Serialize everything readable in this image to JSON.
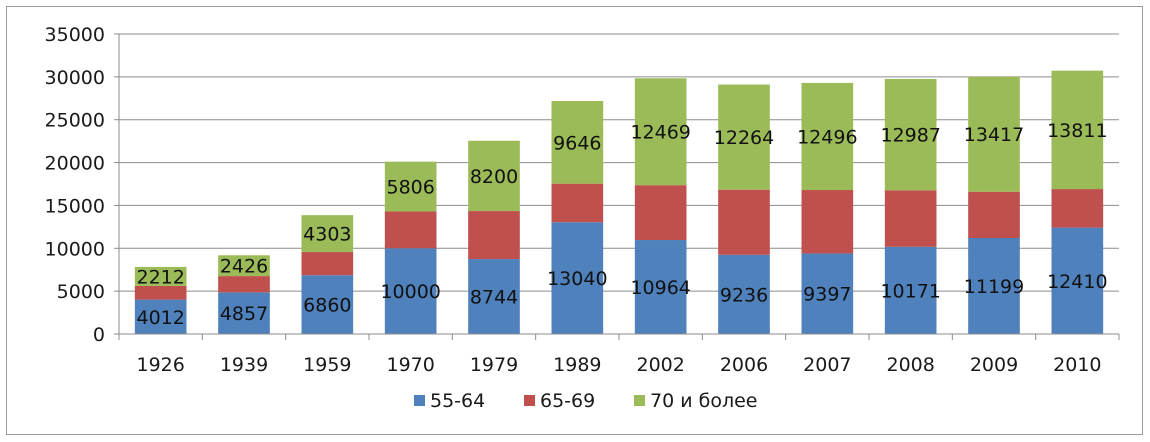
{
  "chart_data": {
    "type": "bar",
    "stacked": true,
    "categories": [
      "1926",
      "1939",
      "1959",
      "1970",
      "1979",
      "1989",
      "2002",
      "2006",
      "2007",
      "2008",
      "2009",
      "2010"
    ],
    "series": [
      {
        "name": "55-64",
        "color": "#4f81bd",
        "values": [
          4012,
          4857,
          6860,
          10000,
          8744,
          13040,
          10964,
          9236,
          9397,
          10171,
          11199,
          12410
        ],
        "labels_shown": true
      },
      {
        "name": "65-69",
        "color": "#c0504d",
        "values": [
          1600,
          1900,
          2700,
          4300,
          5600,
          4500,
          6400,
          7600,
          7400,
          6600,
          5400,
          4500
        ],
        "labels_shown": false
      },
      {
        "name": "70 и более",
        "color": "#9bbb59",
        "values": [
          2212,
          2426,
          4303,
          5806,
          8200,
          9646,
          12469,
          12264,
          12496,
          12987,
          13417,
          13811
        ],
        "labels_shown": true
      }
    ],
    "ylim": [
      0,
      35000
    ],
    "yticks": [
      0,
      5000,
      10000,
      15000,
      20000,
      25000,
      30000,
      35000
    ],
    "grid": true,
    "legend_position": "bottom",
    "title": "",
    "xlabel": "",
    "ylabel": ""
  }
}
